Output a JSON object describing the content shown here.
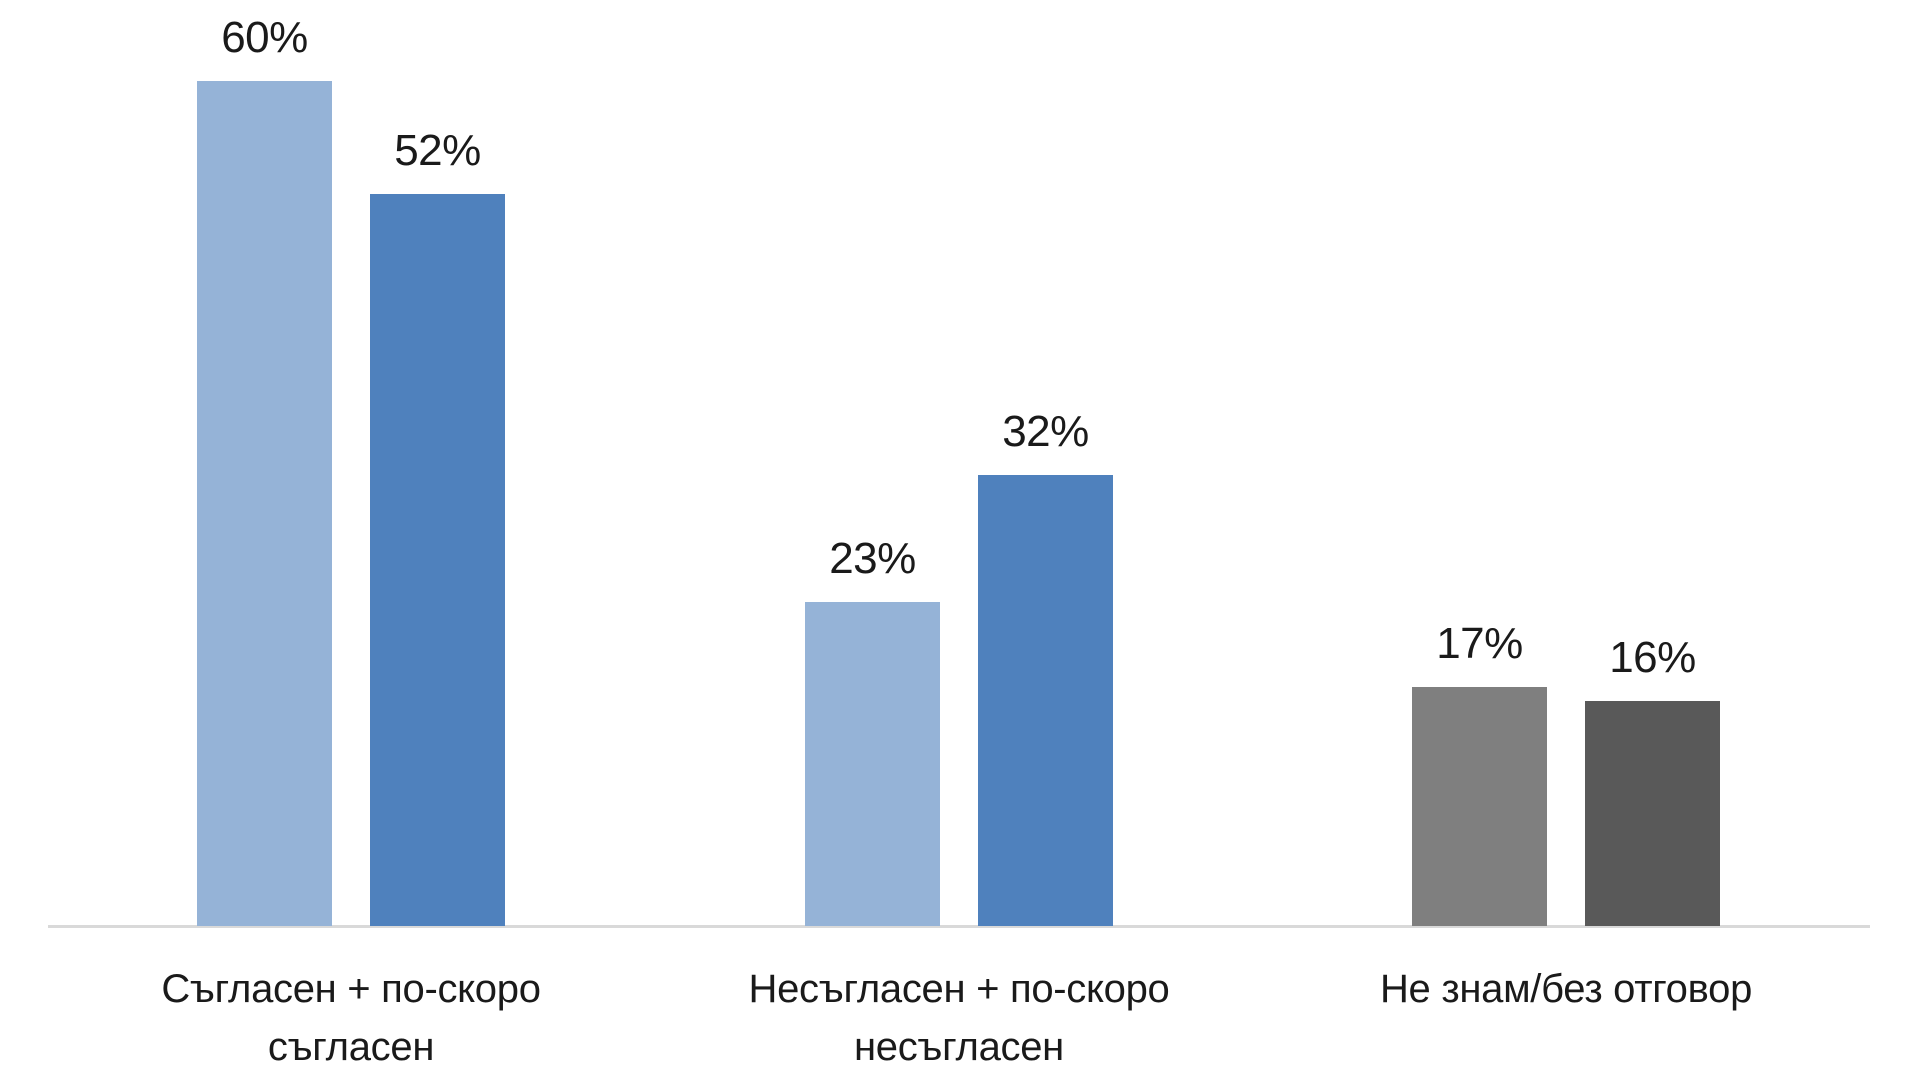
{
  "chart_data": {
    "type": "bar",
    "title": "",
    "xlabel": "",
    "ylabel": "",
    "ylim": [
      0,
      60
    ],
    "grid": false,
    "legend": null,
    "categories": [
      "Съгласен + по-скоро съгласен",
      "Несъгласен + по-скоро несъгласен",
      "Не знам/без отговор"
    ],
    "series": [
      {
        "name": "Series 1",
        "values": [
          60,
          23,
          17
        ],
        "colors": [
          "#95b3d7",
          "#95b3d7",
          "#7f7f7f"
        ]
      },
      {
        "name": "Series 2",
        "values": [
          52,
          32,
          16
        ],
        "colors": [
          "#4f81bd",
          "#4f81bd",
          "#595959"
        ]
      }
    ],
    "value_labels": [
      [
        "60%",
        "23%",
        "17%"
      ],
      [
        "52%",
        "32%",
        "16%"
      ]
    ]
  },
  "labels": {
    "cat0_line1": "Съгласен + по-скоро",
    "cat0_line2": "съгласен",
    "cat1_line1": "Несъгласен + по-скоро",
    "cat1_line2": "несъгласен",
    "cat2_line1": "Не знам/без отговор"
  },
  "colors": {
    "light_blue": "#95b3d7",
    "blue": "#4f81bd",
    "gray": "#7f7f7f",
    "dark_gray": "#595959",
    "axis": "#d9d9d9"
  }
}
